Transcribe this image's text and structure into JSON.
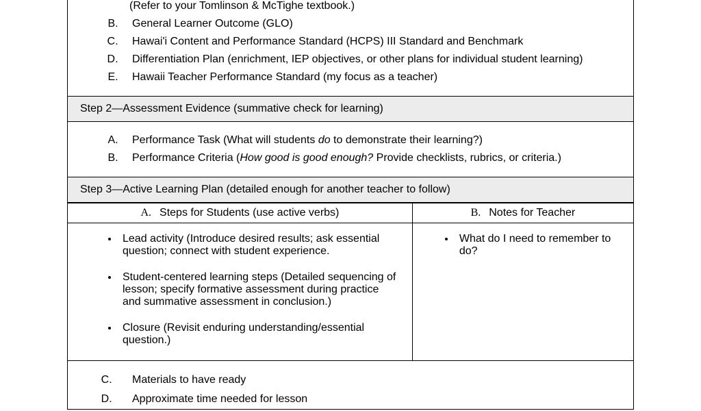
{
  "step1": {
    "note": "(Refer to your Tomlinson & McTighe textbook.)",
    "items": {
      "b": "General Learner Outcome (GLO)",
      "c": "Hawai'i Content and Performance Standard (HCPS) III Standard and Benchmark",
      "d": "Differentiation Plan (enrichment, IEP objectives, or other plans for individual student learning)",
      "e": "Hawaii Teacher Performance Standard (my focus as a teacher)"
    }
  },
  "step2": {
    "header": "Step 2—Assessment Evidence (summative check for learning)",
    "a_prefix": "Performance Task (What will students ",
    "a_italic": "do",
    "a_suffix": " to demonstrate their learning?)",
    "b_prefix": "Performance Criteria (",
    "b_italic": "How good is good enough?",
    "b_suffix": " Provide checklists, rubrics, or criteria.)"
  },
  "step3": {
    "header": "Step 3—Active Learning Plan (detailed enough for another teacher to follow)",
    "col_a_letter": "A.",
    "col_a_text": "Steps for Students (use active verbs)",
    "col_b_letter": "B.",
    "col_b_text": "Notes for Teacher",
    "bullets_left": {
      "0": "Lead activity (Introduce desired results; ask essential question; connect with student experience.",
      "1": "Student-centered learning steps (Detailed sequencing of lesson; specify formative assessment during practice and summative assessment in conclusion.)",
      "2": "Closure (Revisit enduring understanding/essential question.)"
    },
    "bullets_right": {
      "0": "What do I need to remember to do?"
    },
    "items_bottom": {
      "c": "Materials to have ready",
      "d": "Approximate time needed for lesson"
    }
  }
}
